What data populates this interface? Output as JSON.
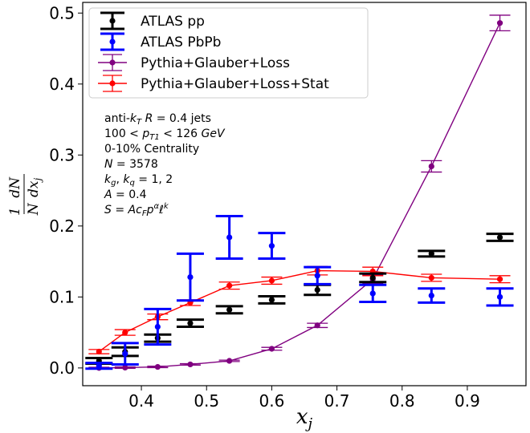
{
  "chart_data": {
    "type": "scatter",
    "xlabel": "x_j",
    "ylabel": "1/N dN/dx_j",
    "xlim": [
      0.31,
      0.99
    ],
    "ylim": [
      -0.025,
      0.515
    ],
    "xticks": [
      0.4,
      0.5,
      0.6,
      0.7,
      0.8,
      0.9
    ],
    "xtick_labels": [
      "0.4",
      "0.5",
      "0.6",
      "0.7",
      "0.8",
      "0.9"
    ],
    "yticks": [
      0.0,
      0.1,
      0.2,
      0.3,
      0.4,
      0.5
    ],
    "ytick_labels": [
      "0.0",
      "0.1",
      "0.2",
      "0.3",
      "0.4",
      "0.5"
    ],
    "grid": false,
    "legend_position": "top-left",
    "series": [
      {
        "name": "ATLAS pp",
        "color": "#000000",
        "style": "errorbar",
        "x": [
          0.335,
          0.375,
          0.425,
          0.475,
          0.535,
          0.6,
          0.67,
          0.755,
          0.845,
          0.95
        ],
        "y": [
          0.01,
          0.023,
          0.042,
          0.063,
          0.082,
          0.096,
          0.11,
          0.127,
          0.161,
          0.184
        ],
        "err": [
          0.004,
          0.006,
          0.005,
          0.005,
          0.005,
          0.005,
          0.007,
          0.006,
          0.004,
          0.005
        ]
      },
      {
        "name": "ATLAS PbPb",
        "color": "#0000ff",
        "style": "errorbar",
        "x": [
          0.335,
          0.375,
          0.425,
          0.475,
          0.535,
          0.6,
          0.67,
          0.755,
          0.845,
          0.95
        ],
        "y": [
          0.003,
          0.02,
          0.058,
          0.128,
          0.184,
          0.172,
          0.13,
          0.105,
          0.102,
          0.1
        ],
        "err": [
          0.004,
          0.015,
          0.025,
          0.033,
          0.03,
          0.018,
          0.012,
          0.012,
          0.01,
          0.012
        ]
      },
      {
        "name": "Pythia+Glauber+Loss",
        "color": "#800080",
        "style": "line-errorbar",
        "x": [
          0.335,
          0.375,
          0.425,
          0.475,
          0.535,
          0.6,
          0.67,
          0.755,
          0.845,
          0.95
        ],
        "y": [
          0.0,
          0.0005,
          0.0015,
          0.005,
          0.01,
          0.027,
          0.06,
          0.125,
          0.284,
          0.486
        ],
        "err": [
          0.001,
          0.001,
          0.001,
          0.001,
          0.001,
          0.002,
          0.003,
          0.006,
          0.008,
          0.011
        ]
      },
      {
        "name": "Pythia+Glauber+Loss+Stat",
        "color": "#ff0000",
        "style": "line-errorbar",
        "x": [
          0.335,
          0.375,
          0.425,
          0.475,
          0.535,
          0.6,
          0.67,
          0.755,
          0.845,
          0.95
        ],
        "y": [
          0.023,
          0.05,
          0.072,
          0.092,
          0.116,
          0.123,
          0.137,
          0.136,
          0.127,
          0.125
        ],
        "err": [
          0.003,
          0.004,
          0.004,
          0.004,
          0.005,
          0.005,
          0.006,
          0.006,
          0.005,
          0.005
        ]
      }
    ],
    "annotations": [
      "anti-k_T R = 0.4 jets",
      "100 < p_T1 < 126 GeV",
      "0-10% Centrality",
      "N = 3578",
      "k_g, k_q = 1, 2",
      "A = 0.4",
      "S = Ac_F p^α ℓ^k"
    ]
  }
}
